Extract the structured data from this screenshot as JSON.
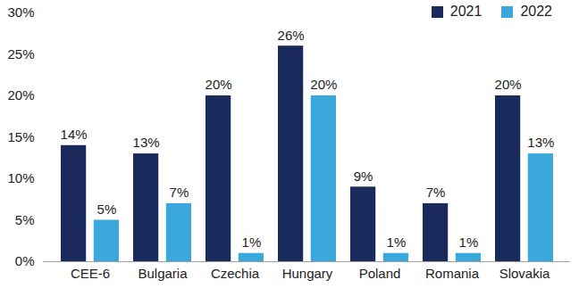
{
  "chart_data": {
    "type": "bar",
    "categories": [
      "CEE-6",
      "Bulgaria",
      "Czechia",
      "Hungary",
      "Poland",
      "Romania",
      "Slovakia"
    ],
    "series": [
      {
        "name": "2021",
        "color": "#1b2a5c",
        "values": [
          14,
          13,
          20,
          26,
          9,
          7,
          20
        ],
        "value_labels": [
          "14%",
          "13%",
          "20%",
          "26%",
          "9%",
          "7%",
          "20%"
        ]
      },
      {
        "name": "2022",
        "color": "#3aa8dc",
        "values": [
          5,
          7,
          1,
          20,
          1,
          1,
          13
        ],
        "value_labels": [
          "5%",
          "7%",
          "1%",
          "20%",
          "1%",
          "1%",
          "13%"
        ]
      }
    ],
    "ylim": [
      0,
      30
    ],
    "yticks": [
      {
        "value": 0,
        "label": "0%"
      },
      {
        "value": 5,
        "label": "5%"
      },
      {
        "value": 10,
        "label": "10%"
      },
      {
        "value": 15,
        "label": "15%"
      },
      {
        "value": 20,
        "label": "20%"
      },
      {
        "value": 25,
        "label": "25%"
      },
      {
        "value": 30,
        "label": "30%"
      }
    ],
    "grid": false,
    "legend": "top-right",
    "data_labels": true
  }
}
